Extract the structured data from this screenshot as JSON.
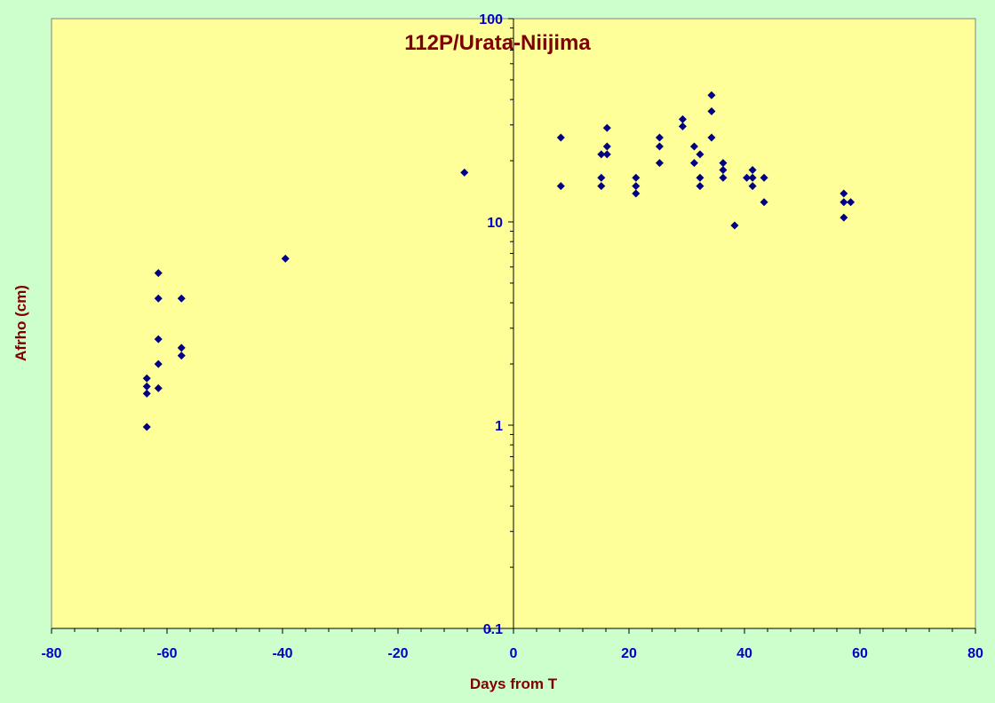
{
  "chart_data": {
    "type": "scatter",
    "title": "112P/Urata-Niijima",
    "xlabel": "Days from T",
    "ylabel": "Afrho (cm)",
    "xlim": [
      -80,
      80
    ],
    "ylim": [
      0.1,
      100
    ],
    "yscale": "log",
    "grid": false,
    "legend": "none",
    "x_ticks": [
      -80,
      -60,
      -40,
      -20,
      0,
      20,
      40,
      60,
      80
    ],
    "y_ticks": [
      0.1,
      1,
      10,
      100
    ],
    "x_tick_labels": [
      "-80",
      "-60",
      "-40",
      "-20",
      "0",
      "20",
      "40",
      "60",
      "80"
    ],
    "y_tick_labels": [
      "0.1",
      "1",
      "10",
      "100"
    ],
    "colors": {
      "background": "#ccffcc",
      "plot_area": "#ffff99",
      "marker": "#000080",
      "title": "#800000",
      "tick_labels": "#0000cc"
    },
    "series": [
      {
        "marker": "diamond",
        "points": [
          [
            -63.5,
            1.7
          ],
          [
            -63.5,
            1.55
          ],
          [
            -63.5,
            1.43
          ],
          [
            -63.5,
            0.98
          ],
          [
            -61.5,
            5.6
          ],
          [
            -61.5,
            4.2
          ],
          [
            -61.5,
            2.65
          ],
          [
            -61.5,
            2.0
          ],
          [
            -61.5,
            1.52
          ],
          [
            -57.5,
            4.2
          ],
          [
            -57.5,
            2.4
          ],
          [
            -57.5,
            2.2
          ],
          [
            -39.5,
            6.6
          ],
          [
            -8.5,
            17.5
          ],
          [
            8.2,
            26.0
          ],
          [
            8.2,
            15.0
          ],
          [
            15.2,
            21.5
          ],
          [
            15.2,
            16.5
          ],
          [
            15.2,
            15.0
          ],
          [
            16.2,
            29.0
          ],
          [
            16.2,
            23.5
          ],
          [
            16.2,
            21.5
          ],
          [
            21.2,
            16.5
          ],
          [
            21.2,
            15.0
          ],
          [
            21.2,
            13.8
          ],
          [
            25.3,
            26.0
          ],
          [
            25.3,
            23.5
          ],
          [
            25.3,
            19.5
          ],
          [
            29.3,
            32.0
          ],
          [
            29.3,
            29.5
          ],
          [
            31.3,
            23.5
          ],
          [
            31.3,
            19.5
          ],
          [
            32.3,
            21.5
          ],
          [
            32.3,
            16.5
          ],
          [
            32.3,
            15.0
          ],
          [
            34.3,
            42.0
          ],
          [
            34.3,
            35.0
          ],
          [
            34.3,
            26.0
          ],
          [
            36.3,
            19.5
          ],
          [
            36.3,
            18.0
          ],
          [
            36.3,
            16.5
          ],
          [
            38.3,
            9.6
          ],
          [
            40.4,
            16.5
          ],
          [
            41.4,
            18.0
          ],
          [
            41.4,
            16.5
          ],
          [
            41.4,
            15.0
          ],
          [
            43.4,
            16.5
          ],
          [
            43.4,
            12.5
          ],
          [
            57.2,
            13.8
          ],
          [
            57.2,
            12.5
          ],
          [
            57.2,
            10.5
          ],
          [
            58.4,
            12.5
          ]
        ]
      }
    ]
  }
}
